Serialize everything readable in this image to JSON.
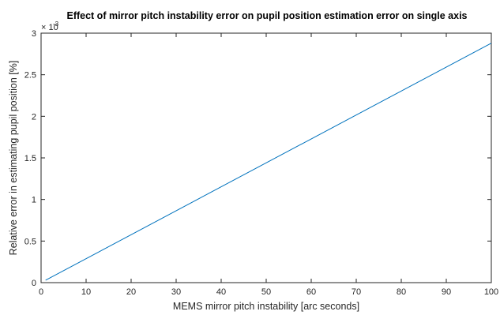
{
  "chart_data": {
    "type": "line",
    "title": "Effect of mirror pitch instability error on pupil position estimation error on single axis",
    "xlabel": "MEMS mirror pitch instability [arc seconds]",
    "ylabel": "Relative error in estimating pupil position [%]",
    "xlim": [
      0,
      100
    ],
    "ylim": [
      0,
      3
    ],
    "y_multiplier": {
      "base": "× 10",
      "exponent": "-3"
    },
    "xticks": [
      0,
      10,
      20,
      30,
      40,
      50,
      60,
      70,
      80,
      90,
      100
    ],
    "yticks": [
      0,
      0.5,
      1,
      1.5,
      2,
      2.5,
      3
    ],
    "xtick_labels": [
      "0",
      "10",
      "20",
      "30",
      "40",
      "50",
      "60",
      "70",
      "80",
      "90",
      "100"
    ],
    "ytick_labels": [
      "0",
      "0.5",
      "1",
      "1.5",
      "2",
      "2.5",
      "3"
    ],
    "grid": false,
    "line_color": "#0072BD",
    "series": [
      {
        "x": [
          1,
          100
        ],
        "y": [
          0.029,
          2.88
        ]
      }
    ]
  }
}
